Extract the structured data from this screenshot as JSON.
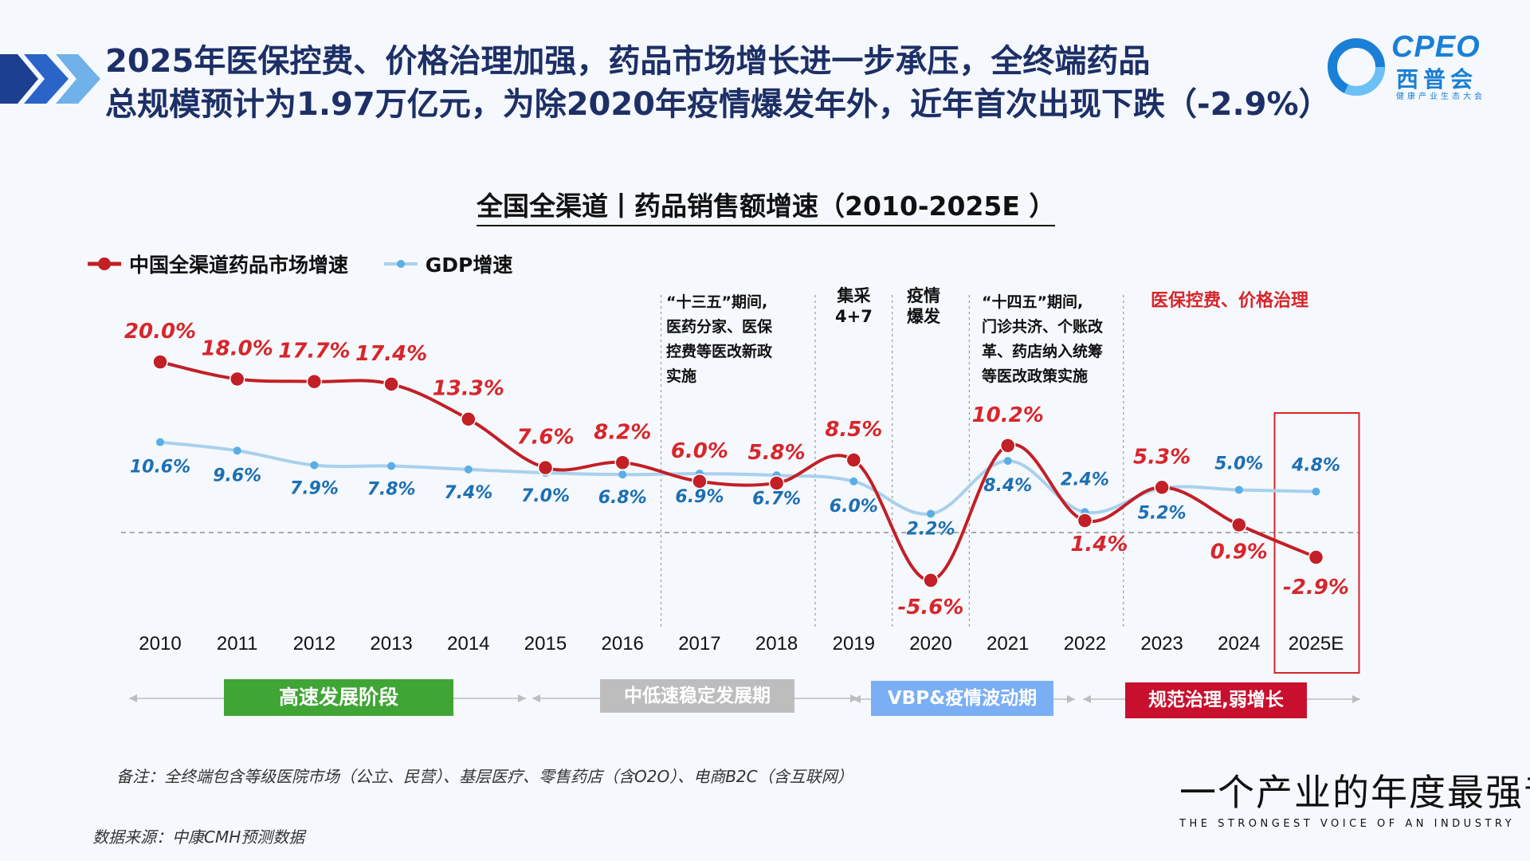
{
  "headline": {
    "line1": "2025年医保控费、价格治理加强，药品市场增长进一步承压，全终端药品",
    "line2": "总规模预计为1.97万亿元，为除2020年疫情爆发年外，近年首次出现下跌（-2.9%）"
  },
  "logo": {
    "brand": "CPEO",
    "cn": "西普会",
    "sub": "健康产业生态大会"
  },
  "colors": {
    "series1": "#c21f26",
    "series2": "#a9d0ec",
    "series2_label": "#1d6fb3",
    "highlight": "#d7262b"
  },
  "chart_data": {
    "type": "line",
    "title": "全国全渠道丨药品销售额增速（2010-2025E ）",
    "categories": [
      "2010",
      "2011",
      "2012",
      "2013",
      "2014",
      "2015",
      "2016",
      "2017",
      "2018",
      "2019",
      "2020",
      "2021",
      "2022",
      "2023",
      "2024",
      "2025E"
    ],
    "series": [
      {
        "name": "中国全渠道药品市场增速",
        "values": [
          20.0,
          18.0,
          17.7,
          17.4,
          13.3,
          7.6,
          8.2,
          6.0,
          5.8,
          8.5,
          -5.6,
          10.2,
          1.4,
          5.3,
          0.9,
          -2.9
        ],
        "labels": [
          "20.0%",
          "18.0%",
          "17.7%",
          "17.4%",
          "13.3%",
          "7.6%",
          "8.2%",
          "6.0%",
          "5.8%",
          "8.5%",
          "-5.6%",
          "10.2%",
          "1.4%",
          "5.3%",
          "0.9%",
          "-2.9%"
        ]
      },
      {
        "name": "GDP增速",
        "values": [
          10.6,
          9.6,
          7.9,
          7.8,
          7.4,
          7.0,
          6.8,
          6.9,
          6.7,
          6.0,
          2.2,
          8.4,
          2.4,
          5.2,
          5.0,
          4.8
        ],
        "labels": [
          "10.6%",
          "9.6%",
          "7.9%",
          "7.8%",
          "7.4%",
          "7.0%",
          "6.8%",
          "6.9%",
          "6.7%",
          "6.0%",
          "2.2%",
          "8.4%",
          "2.4%",
          "5.2%",
          "5.0%",
          "4.8%"
        ]
      }
    ],
    "ylim": [
      -8,
      22
    ],
    "baseline": 0,
    "annotations": [
      {
        "lines": [
          "“十三五”期间,",
          "医药分家、医保",
          "控费等医改新政",
          "实施"
        ],
        "style": "normal"
      },
      {
        "lines": [
          "集采",
          "4+7"
        ],
        "style": "normal"
      },
      {
        "lines": [
          "疫情",
          "爆发"
        ],
        "style": "normal"
      },
      {
        "lines": [
          "“十四五”期间,",
          "门诊共济、个账改",
          "革、药店纳入统筹",
          "等医改政策实施"
        ],
        "style": "normal"
      },
      {
        "lines": [
          "医保控费、价格治理"
        ],
        "style": "red"
      }
    ],
    "phases": [
      {
        "label": "高速发展阶段",
        "color": "#3fa535"
      },
      {
        "label": "中低速稳定发展期",
        "color": "#b9b9b9"
      },
      {
        "label": "VBP&疫情波动期",
        "color": "#7aaef5"
      },
      {
        "label": "规范治理,弱增长",
        "color": "#c8102e"
      }
    ]
  },
  "footer": {
    "note": "备注：全终端包含等级医院市场（公立、民营）、基层医疗、零售药店（含O2O）、电商B2C（含互联网）",
    "source": "数据来源：中康CMH预测数据",
    "slogan_cn": "一个产业的年度最强音",
    "slogan_en": "THE STRONGEST VOICE OF AN INDUSTRY"
  }
}
